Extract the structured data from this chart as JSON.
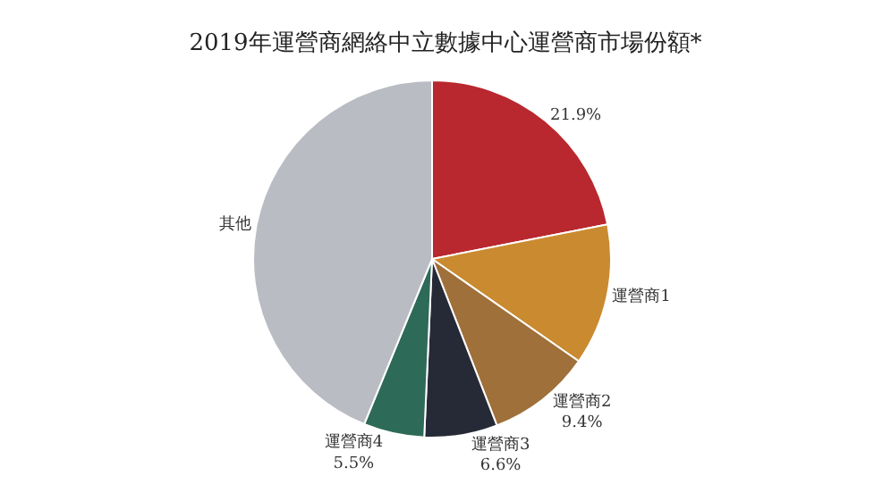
{
  "chart_data": {
    "type": "pie",
    "title": "2019年運營商網絡中立數據中心運營商市場份額*",
    "categories": [
      null,
      "運營商1",
      "運營商2",
      "運營商3",
      "運營商4",
      "其他"
    ],
    "values": [
      21.9,
      12.8,
      9.4,
      6.6,
      5.5,
      43.8
    ],
    "value_labels": [
      "21.9%",
      null,
      "9.4%",
      "6.6%",
      "5.5%",
      null
    ],
    "colors": [
      "#b8282e",
      "#c98a30",
      "#a0703a",
      "#262a36",
      "#2e6a58",
      "#b9bcc3"
    ]
  }
}
